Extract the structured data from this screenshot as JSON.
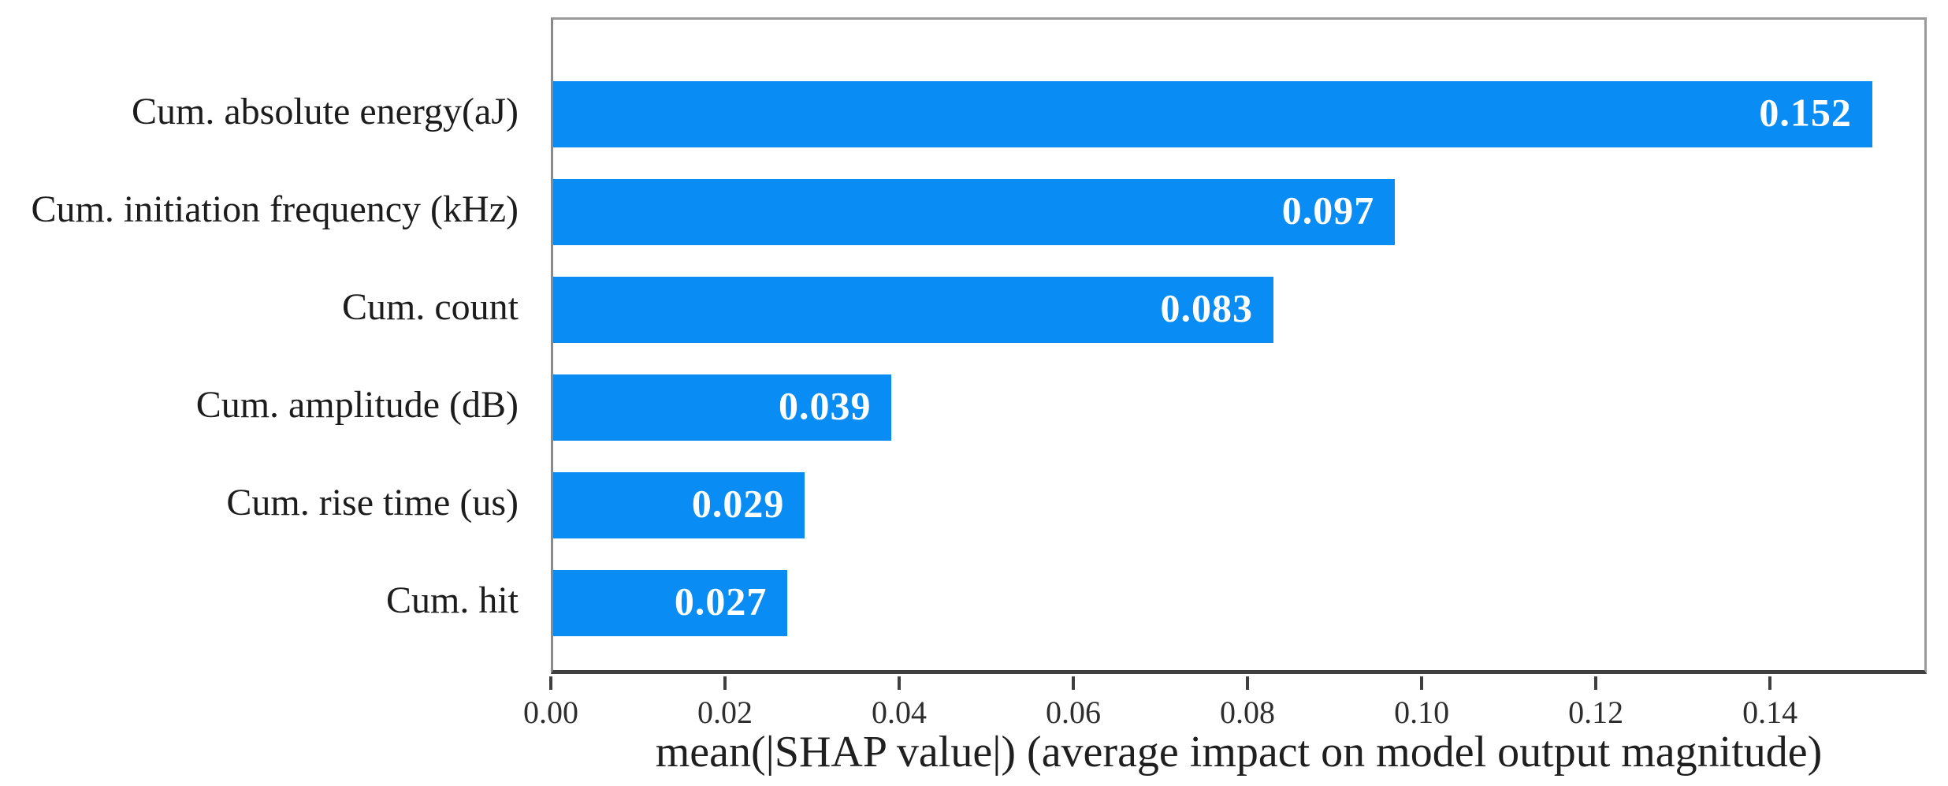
{
  "chart_data": {
    "type": "bar",
    "orientation": "horizontal",
    "title": "",
    "categories": [
      "Cum. absolute energy(aJ)",
      "Cum. initiation frequency (kHz)",
      "Cum. count",
      "Cum. amplitude (dB)",
      "Cum. rise time (us)",
      "Cum. hit"
    ],
    "values": [
      0.152,
      0.097,
      0.083,
      0.039,
      0.029,
      0.027
    ],
    "value_labels": [
      "0.152",
      "0.097",
      "0.083",
      "0.039",
      "0.029",
      "0.027"
    ],
    "xlabel": "mean(|SHAP value|) (average impact on model output magnitude)",
    "ylabel": "",
    "xlim": [
      0,
      0.158
    ],
    "xticks": [
      0.0,
      0.02,
      0.04,
      0.06,
      0.08,
      0.1,
      0.12,
      0.14
    ],
    "xtick_labels": [
      "0.00",
      "0.02",
      "0.04",
      "0.06",
      "0.08",
      "0.10",
      "0.12",
      "0.14"
    ],
    "grid": false,
    "legend": "none",
    "bar_color": "#0a8cf5",
    "value_label_color": "#ffffff",
    "axis_color": "#3f3f3f",
    "box_border_color": "#9a9a9a",
    "background_color": "#ffffff"
  }
}
